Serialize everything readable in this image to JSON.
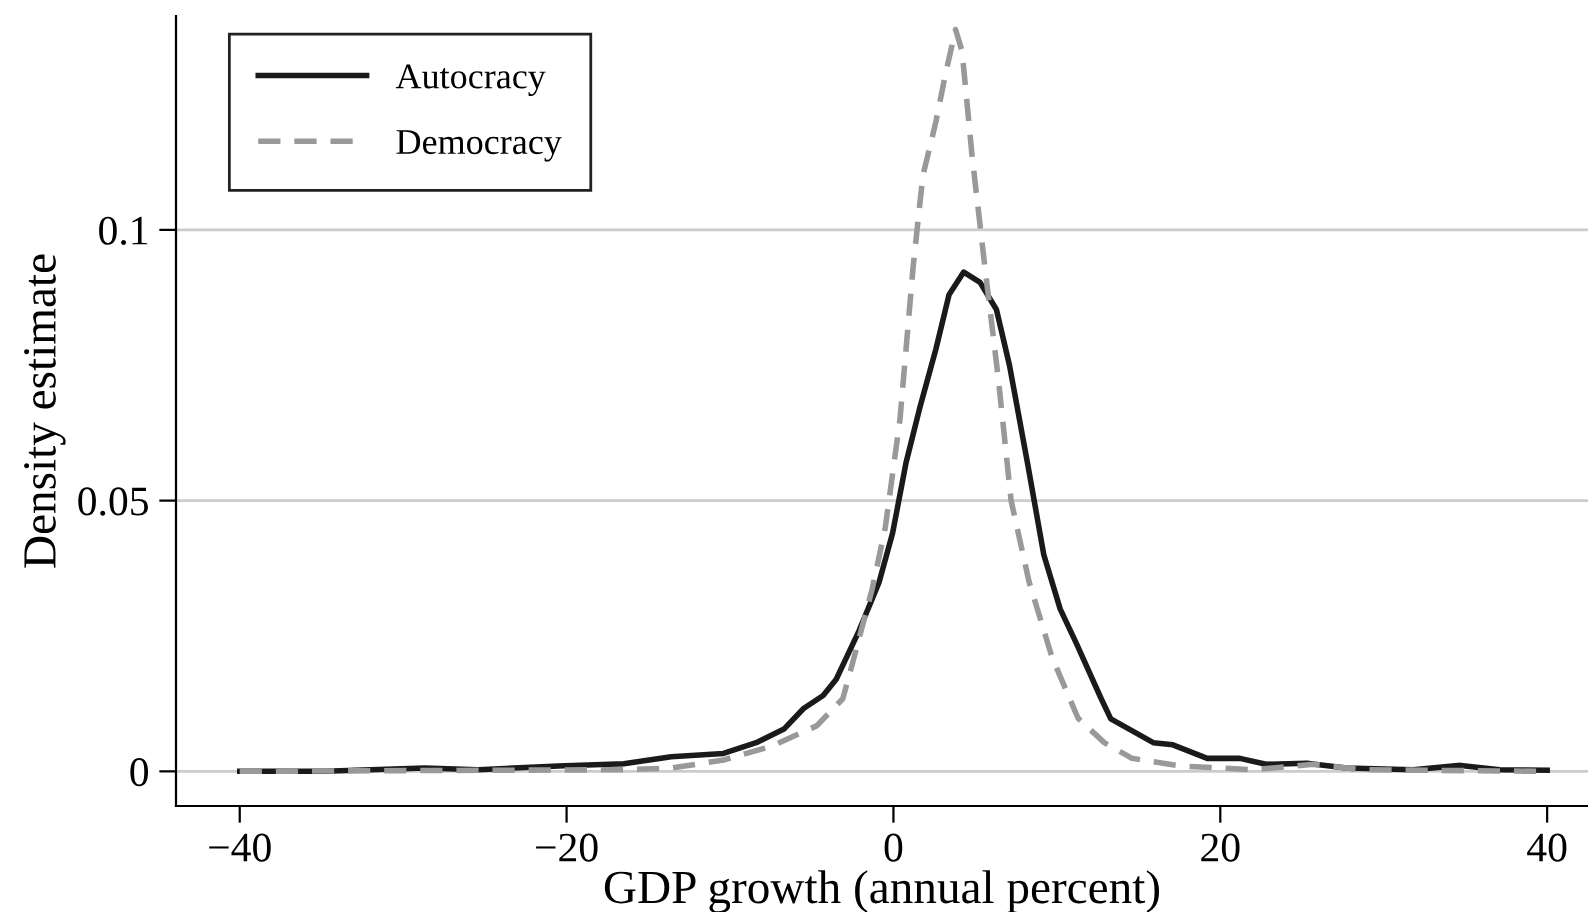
{
  "chart_data": {
    "type": "line",
    "xlabel": "GDP growth (annual percent)",
    "ylabel": "Density estimate",
    "xlim": [
      -43.9,
      42.5
    ],
    "ylim": [
      -0.0064,
      0.1395
    ],
    "xticks": [
      {
        "value": -40,
        "label": "−40"
      },
      {
        "value": -20,
        "label": "−20"
      },
      0,
      20,
      40
    ],
    "yticks": [
      0,
      0.05,
      0.1
    ],
    "grid": "y",
    "legend": "top left",
    "series": [
      {
        "name": "Autocracy",
        "color": "#1a1a1a",
        "line_style": "solid",
        "x": [
          -40,
          -34.8,
          -28.7,
          -25.4,
          -20.5,
          -16.5,
          -13.6,
          -10.4,
          -8.4,
          -6.7,
          -5.5,
          -4.3,
          -3.5,
          -2.1,
          -0.87,
          -0.05,
          0.77,
          1.6,
          2.6,
          3.4,
          4.3,
          5.3,
          6.3,
          7.1,
          8.2,
          9.2,
          10.2,
          11.2,
          12.7,
          13.3,
          15.9,
          17.1,
          19.2,
          21.2,
          22.8,
          25.3,
          27.7,
          31.8,
          34.7,
          37.1,
          40
        ],
        "values": [
          0.0,
          0.0,
          0.0006,
          0.0003,
          0.001,
          0.0014,
          0.0027,
          0.0033,
          0.0053,
          0.0078,
          0.0116,
          0.014,
          0.017,
          0.026,
          0.035,
          0.044,
          0.057,
          0.067,
          0.078,
          0.088,
          0.0922,
          0.0903,
          0.0853,
          0.075,
          0.057,
          0.04,
          0.03,
          0.0236,
          0.0135,
          0.0097,
          0.0053,
          0.0049,
          0.0024,
          0.0024,
          0.0013,
          0.0015,
          0.0006,
          0.0003,
          0.0011,
          0.0003,
          0.0002
        ]
      },
      {
        "name": "Democracy",
        "color": "#999999",
        "line_style": "dashed",
        "x": [
          -40,
          -16.5,
          -13.6,
          -10.4,
          -7.5,
          -4.7,
          -3.1,
          -2.5,
          -1.3,
          -0.5,
          0.4,
          1.2,
          1.8,
          2.6,
          3.2,
          3.8,
          4.2,
          4.8,
          5.6,
          6.4,
          7.2,
          8.3,
          9.7,
          11.3,
          12.9,
          14.6,
          17.5,
          22,
          25.7,
          28.6,
          40
        ],
        "values": [
          0.0,
          0.0003,
          0.0006,
          0.0021,
          0.0046,
          0.0084,
          0.0134,
          0.02,
          0.0337,
          0.045,
          0.065,
          0.093,
          0.11,
          0.12,
          0.129,
          0.137,
          0.133,
          0.114,
          0.093,
          0.073,
          0.05,
          0.035,
          0.0211,
          0.0098,
          0.0053,
          0.0024,
          0.001,
          0.0003,
          0.0013,
          0.0003,
          0.0
        ]
      }
    ]
  }
}
